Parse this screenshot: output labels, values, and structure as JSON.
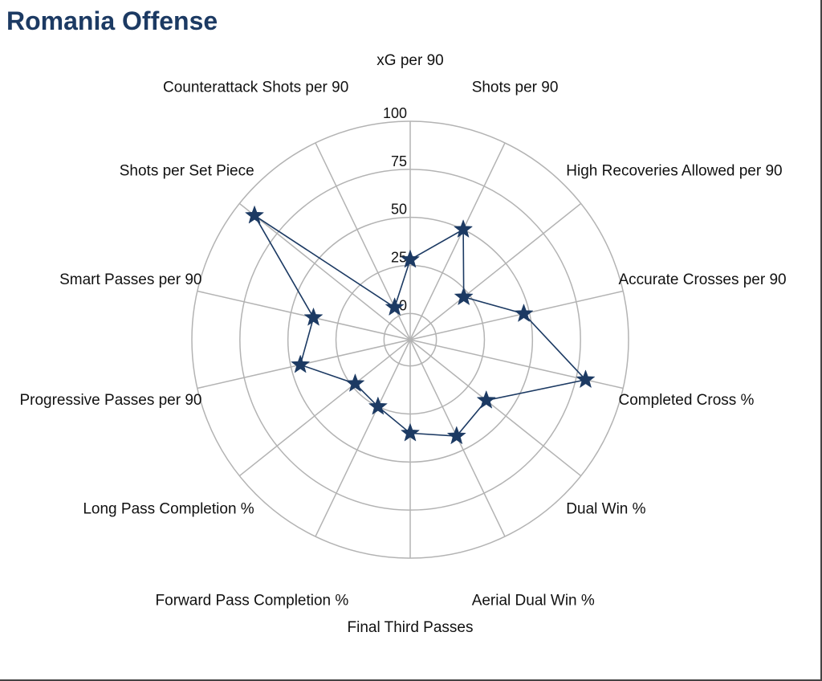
{
  "chart_data": {
    "type": "radar",
    "title": "Romania Offense",
    "axes": [
      "xG per 90",
      "Shots per 90",
      "High Recoveries Allowed per 90",
      "Accurate Crosses per 90",
      "Completed Cross %",
      "Dual Win %",
      "Aerial Dual Win %",
      "Final Third Passes",
      "Forward Pass Completion %",
      "Long Pass Completion %",
      "Progressive Passes per 90",
      "Smart Passes per 90",
      "Shots per Set Piece",
      "Counterattack Shots per 90"
    ],
    "values": [
      28,
      50,
      22,
      47,
      80,
      37,
      42,
      35,
      25,
      23,
      45,
      38,
      90,
      5
    ],
    "rlim": [
      0,
      100
    ],
    "r_ticks": [
      0,
      25,
      50,
      75,
      100
    ],
    "grid": true,
    "legend": "none",
    "colors": {
      "series": "#1c3a63",
      "grid": "#b3b3b3",
      "title": "#1c3a63"
    }
  }
}
